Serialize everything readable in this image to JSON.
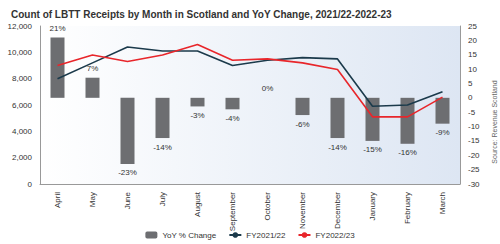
{
  "chart_data": {
    "type": "bar",
    "title": "Count of LBTT Receipts by Month in Scotland and YoY Change, 2021/22-2022-23",
    "source": "Source: Revenue Scotland",
    "categories": [
      "April",
      "May",
      "June",
      "July",
      "August",
      "September",
      "October",
      "November",
      "December",
      "January",
      "February",
      "March"
    ],
    "series": [
      {
        "name": "YoY % Change",
        "type": "bar",
        "axis": "y2",
        "color": "#6d6e71",
        "values": [
          21,
          7,
          -23,
          -14,
          -3,
          -4,
          0,
          -6,
          -14,
          -15,
          -16,
          -9
        ],
        "value_labels": [
          "21%",
          "7%",
          "-23%",
          "-14%",
          "-3%",
          "-4%",
          "0%",
          "-6%",
          "-14%",
          "-15%",
          "-16%",
          "-9%"
        ]
      },
      {
        "name": "FY2021/22",
        "type": "line",
        "color": "#1b3a4b",
        "marker": "none",
        "line_style": "solid",
        "values": [
          8000,
          9200,
          10400,
          10100,
          10100,
          9000,
          9400,
          9600,
          9500,
          5900,
          6000,
          7000
        ]
      },
      {
        "name": "FY2022/23",
        "type": "line",
        "color": "#e8262b",
        "marker": "none",
        "line_style": "solid",
        "values": [
          9000,
          9800,
          9300,
          9800,
          10600,
          9400,
          9500,
          9200,
          8700,
          5100,
          5100,
          6600
        ]
      }
    ],
    "ylim": [
      0,
      12000
    ],
    "yticks": [
      0,
      {
        "value": 2000,
        "label": "2,000"
      },
      {
        "value": 4000,
        "label": "4,000"
      },
      {
        "value": 6000,
        "label": "6,000"
      },
      {
        "value": 8000,
        "label": "8,000"
      },
      {
        "value": 10000,
        "label": "10,000"
      },
      {
        "value": 12000,
        "label": "12,000"
      }
    ],
    "y2lim": [
      -30,
      25
    ],
    "y2ticks": [
      -30,
      -25,
      -20,
      -15,
      -10,
      -5,
      0,
      5,
      10,
      15,
      20,
      25
    ],
    "grid": false,
    "legend": "bottom",
    "data_labels": true
  }
}
